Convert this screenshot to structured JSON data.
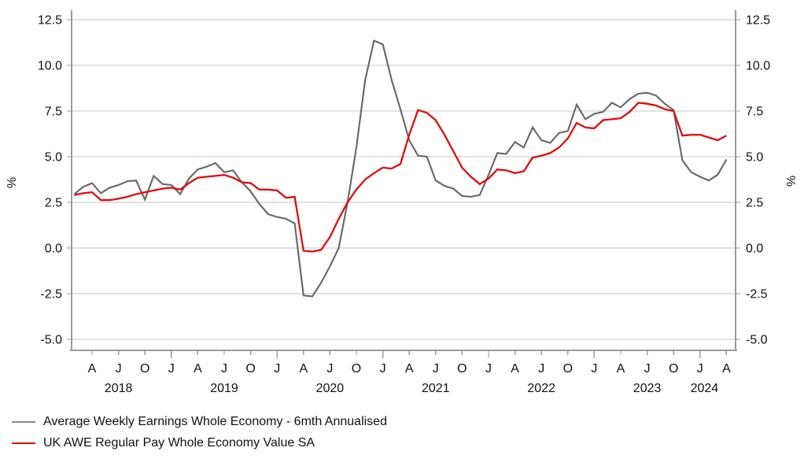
{
  "chart": {
    "y_axis": {
      "tick_labels": [
        "12.5",
        "10.0",
        "7.5",
        "5.0",
        "2.5",
        "0.0",
        "-2.5",
        "-5.0"
      ],
      "tick_values": [
        12.5,
        10.0,
        7.5,
        5.0,
        2.5,
        0.0,
        -2.5,
        -5.0
      ],
      "unit_label_left": "%",
      "unit_label_right": "%"
    },
    "x_axis": {
      "quarter_tick_letters": [
        "A",
        "J",
        "O",
        "J",
        "A",
        "J",
        "O",
        "J",
        "A",
        "J",
        "O",
        "J",
        "A",
        "J",
        "O",
        "J",
        "A",
        "J",
        "O",
        "J",
        "A",
        "J",
        "O",
        "J",
        "A"
      ],
      "year_labels": [
        {
          "label": "2018",
          "month_offset": 3
        },
        {
          "label": "2019",
          "month_offset": 15
        },
        {
          "label": "2020",
          "month_offset": 27
        },
        {
          "label": "2021",
          "month_offset": 39
        },
        {
          "label": "2022",
          "month_offset": 51
        },
        {
          "label": "2023",
          "month_offset": 63
        },
        {
          "label": "2024",
          "month_offset": 69.5
        }
      ]
    },
    "colors": {
      "axis": "#9b9b9b",
      "grid": "#c6c6c6",
      "text": "#111111",
      "series_gray": "#666666",
      "series_red": "#e30a0a",
      "legend_swatch_gray": "#8a8a8a",
      "legend_swatch_red": "#e30a0a"
    }
  },
  "chart_data": {
    "type": "line",
    "title": "",
    "xlabel": "",
    "ylabel_left": "%",
    "ylabel_right": "%",
    "ylim": [
      -5.0,
      12.5
    ],
    "y_tick_step": 2.5,
    "grid": true,
    "legend_position": "bottom-left",
    "x_frequency": "monthly",
    "x_start_month": "2018-02",
    "x_end_month": "2024-04",
    "series": [
      {
        "name": "Average Weekly Earnings Whole Economy - 6mth Annualised",
        "color": "#666666",
        "values": [
          2.95,
          3.35,
          3.55,
          3.0,
          3.3,
          3.45,
          3.65,
          3.7,
          2.65,
          3.95,
          3.5,
          3.45,
          2.95,
          3.8,
          4.3,
          4.45,
          4.65,
          4.15,
          4.25,
          3.6,
          3.1,
          2.4,
          1.85,
          1.7,
          1.6,
          1.35,
          -2.6,
          -2.65,
          -1.9,
          -1.0,
          0.0,
          2.5,
          5.5,
          9.2,
          11.35,
          11.15,
          9.2,
          7.6,
          5.9,
          5.05,
          5.0,
          3.7,
          3.4,
          3.25,
          2.85,
          2.8,
          2.9,
          4.0,
          5.2,
          5.15,
          5.8,
          5.5,
          6.6,
          5.9,
          5.75,
          6.3,
          6.4,
          7.85,
          7.05,
          7.35,
          7.45,
          7.95,
          7.7,
          8.15,
          8.45,
          8.5,
          8.35,
          7.9,
          7.55,
          4.8,
          4.15,
          3.9,
          3.7,
          4.0,
          4.85
        ]
      },
      {
        "name": "UK AWE Regular Pay Whole Economy Value SA",
        "color": "#e30a0a",
        "values": [
          2.9,
          3.0,
          3.05,
          2.62,
          2.62,
          2.7,
          2.8,
          2.95,
          3.05,
          3.15,
          3.25,
          3.3,
          3.2,
          3.55,
          3.85,
          3.9,
          3.95,
          4.0,
          3.85,
          3.6,
          3.55,
          3.2,
          3.2,
          3.15,
          2.75,
          2.8,
          -0.15,
          -0.2,
          -0.1,
          0.6,
          1.6,
          2.5,
          3.2,
          3.75,
          4.1,
          4.4,
          4.35,
          4.6,
          6.2,
          7.55,
          7.4,
          7.0,
          6.2,
          5.3,
          4.4,
          3.9,
          3.5,
          3.8,
          4.3,
          4.25,
          4.1,
          4.2,
          4.95,
          5.05,
          5.2,
          5.5,
          6.0,
          6.85,
          6.6,
          6.55,
          7.0,
          7.05,
          7.1,
          7.45,
          7.95,
          7.9,
          7.8,
          7.6,
          7.5,
          6.15,
          6.2,
          6.2,
          6.05,
          5.9,
          6.15
        ]
      }
    ]
  }
}
